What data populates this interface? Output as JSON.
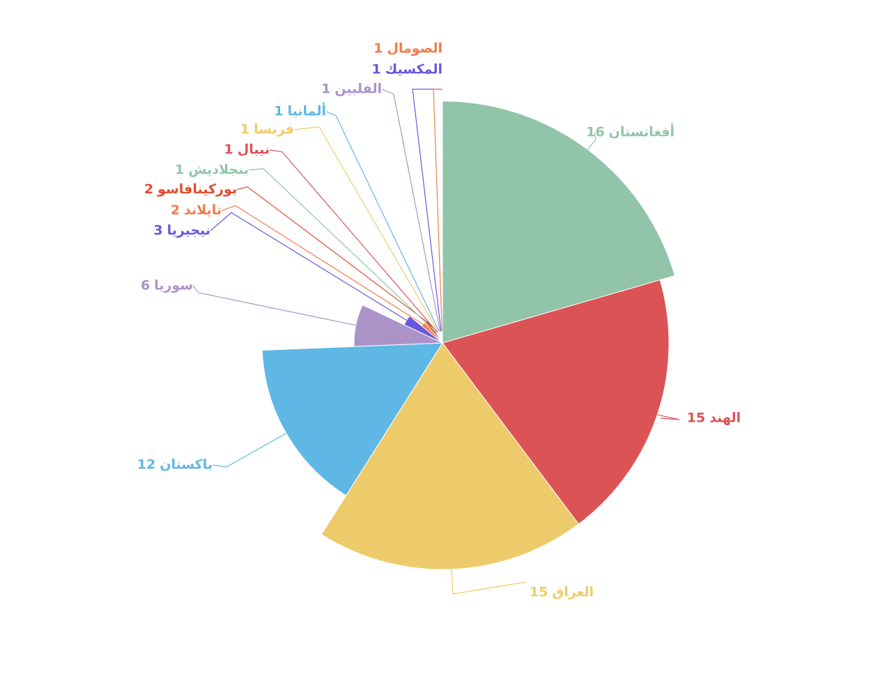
{
  "chart_data": {
    "type": "rose-pie",
    "categories": [
      "أفغانستان",
      "الهند",
      "العراق",
      "باكستان",
      "سوريا",
      "نيجيريا",
      "تايلاند",
      "بوركينافاسو",
      "بنجلاديش",
      "نيبال",
      "فرنسا",
      "ألمانيا",
      "الفلبين",
      "المكسيك",
      "الصومال"
    ],
    "values": [
      16,
      15,
      15,
      12,
      6,
      3,
      2,
      2,
      1,
      1,
      1,
      1,
      1,
      1,
      1
    ],
    "colors": [
      "#91c4a8",
      "#dc5356",
      "#eecb6a",
      "#5fb7e5",
      "#ab93c8",
      "#6a55dd",
      "#f47a4a",
      "#e04d2e",
      "#91c4a8",
      "#dc5356",
      "#eecb6a",
      "#5fb7e5",
      "#ab93c8",
      "#6a55dd",
      "#f47a4a"
    ]
  }
}
